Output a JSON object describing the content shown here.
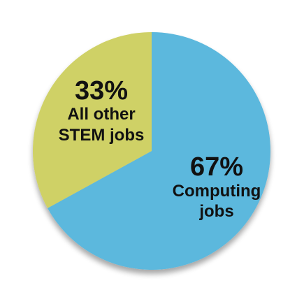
{
  "chart_data": {
    "type": "pie",
    "slices": [
      {
        "category": "Computing jobs",
        "value": 67,
        "percent_label": "67%",
        "label_lines": [
          "Computing",
          "jobs"
        ],
        "color": "#5BB8DD"
      },
      {
        "category": "All other STEM jobs",
        "value": 33,
        "percent_label": "33%",
        "label_lines": [
          "All other",
          "STEM jobs"
        ],
        "color": "#CFD166"
      }
    ],
    "title": "",
    "legend": "none",
    "start_angle_deg": 0,
    "direction": "clockwise"
  }
}
